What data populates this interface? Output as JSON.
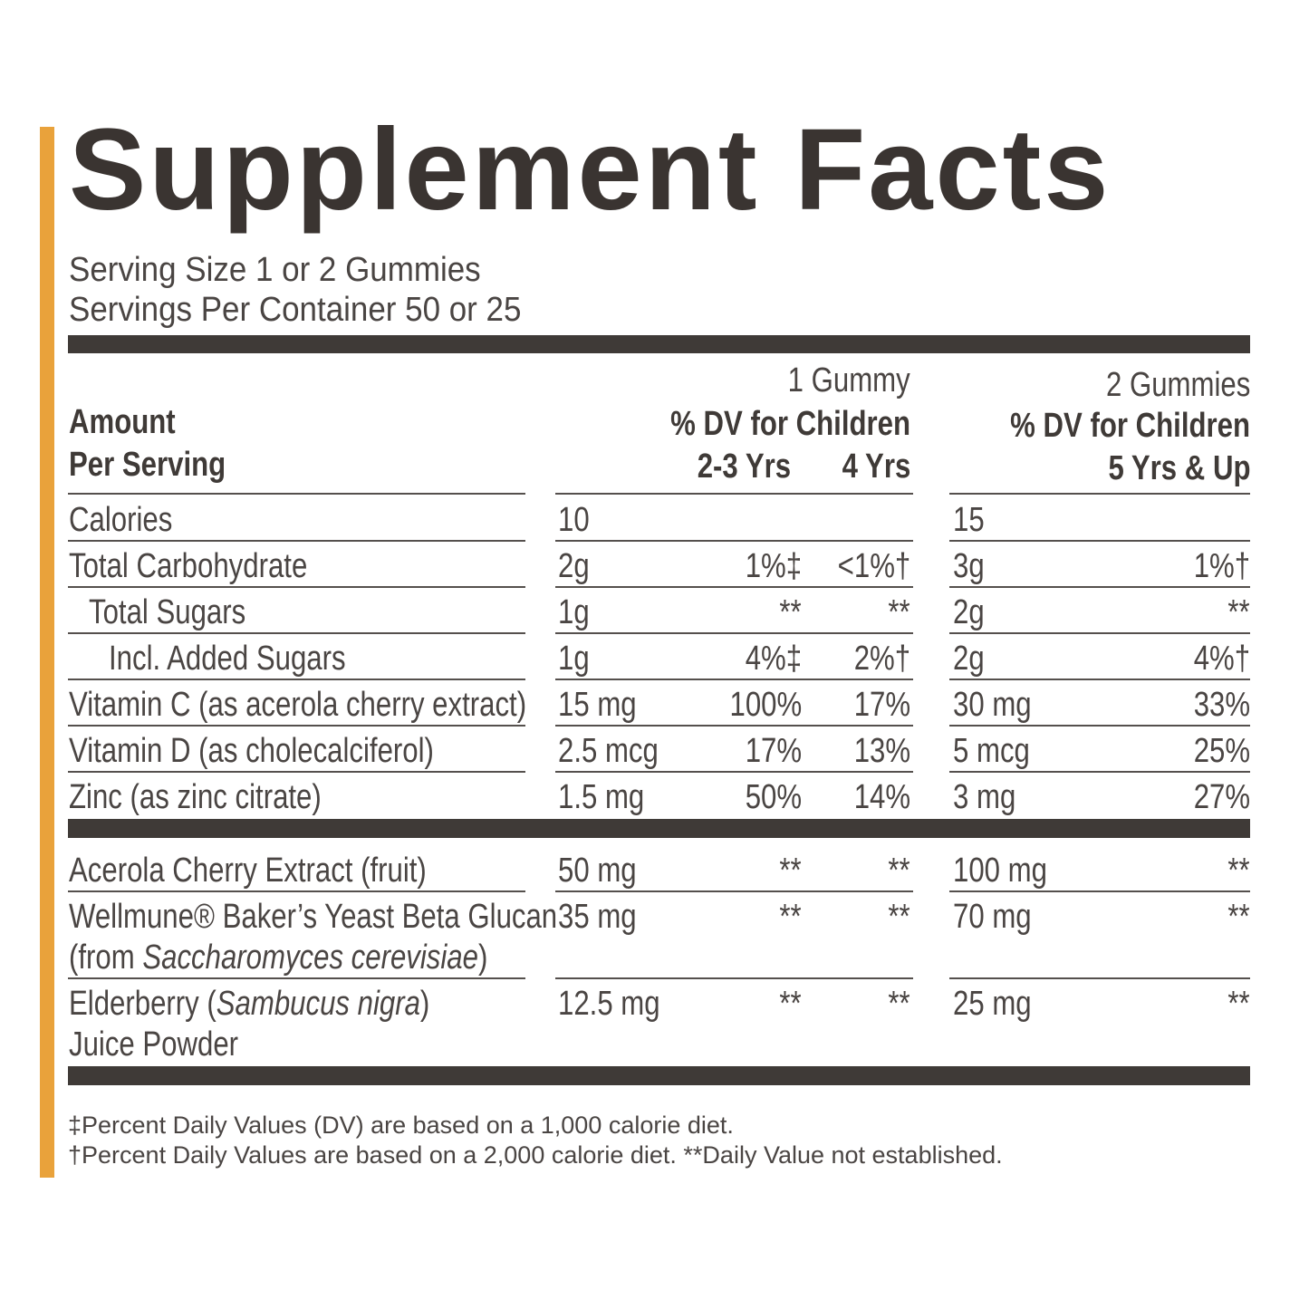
{
  "title": "Supplement Facts",
  "serving": [
    "Serving Size 1 or 2 Gummies",
    "Servings Per Container 50 or 25"
  ],
  "header": {
    "amount": [
      "Amount",
      "Per Serving"
    ],
    "one_gummy": {
      "label": "1 Gummy",
      "dv": "% DV for Children",
      "ages": [
        "2-3 Yrs",
        "4 Yrs"
      ]
    },
    "two_gummies": {
      "label": "2 Gummies",
      "dv": "% DV for Children",
      "ages": "5 Yrs & Up"
    }
  },
  "sections": [
    [
      {
        "name": [
          [
            "Calories"
          ]
        ],
        "amount1": "10",
        "amount2": "15"
      },
      {
        "name": [
          [
            "Total Carbohydrate"
          ]
        ],
        "amount1": "2g",
        "dv23": "1%‡",
        "dv4": "<1%†",
        "amount2": "3g",
        "dv2": "1%†"
      },
      {
        "name": [
          [
            "Total Sugars"
          ]
        ],
        "level": 1,
        "amount1": "1g",
        "dv23": "**",
        "dv4": "**",
        "amount2": "2g",
        "dv2": "**"
      },
      {
        "name": [
          [
            "Incl. Added Sugars"
          ]
        ],
        "level": 2,
        "amount1": "1g",
        "dv23": "4%‡",
        "dv4": "2%†",
        "amount2": "2g",
        "dv2": "4%†"
      },
      {
        "name": [
          [
            "Vitamin C (as acerola cherry extract)"
          ]
        ],
        "amount1": "15 mg",
        "dv23": "100%",
        "dv4": "17%",
        "amount2": "30 mg",
        "dv2": "33%"
      },
      {
        "name": [
          [
            "Vitamin D (as cholecalciferol)"
          ]
        ],
        "amount1": "2.5 mcg",
        "dv23": "17%",
        "dv4": "13%",
        "amount2": "5 mcg",
        "dv2": "25%"
      },
      {
        "name": [
          [
            "Zinc (as zinc citrate)"
          ]
        ],
        "amount1": "1.5 mg",
        "dv23": "50%",
        "dv4": "14%",
        "amount2": "3 mg",
        "dv2": "27%"
      }
    ],
    [
      {
        "name": [
          [
            "Acerola Cherry Extract (fruit)"
          ]
        ],
        "amount1": "50 mg",
        "dv23": "**",
        "dv4": "**",
        "amount2": "100 mg",
        "dv2": "**"
      },
      {
        "name": [
          [
            "Wellmune® Baker’s Yeast Beta Glucan"
          ],
          [
            "(from ",
            "Saccharomyces cerevisiae",
            ")"
          ]
        ],
        "amount1": "35 mg",
        "dv23": "**",
        "dv4": "**",
        "amount2": "70 mg",
        "dv2": "**"
      },
      {
        "name": [
          [
            "Elderberry (",
            "Sambucus nigra",
            ")"
          ],
          [
            "Juice Powder"
          ]
        ],
        "amount1": "12.5 mg",
        "dv23": "**",
        "dv4": "**",
        "amount2": "25 mg",
        "dv2": "**"
      }
    ]
  ],
  "footnotes": [
    "‡Percent Daily Values (DV) are based on a 1,000 calorie diet.",
    "†Percent Daily Values are based on a 2,000 calorie diet. **Daily Value not established."
  ]
}
